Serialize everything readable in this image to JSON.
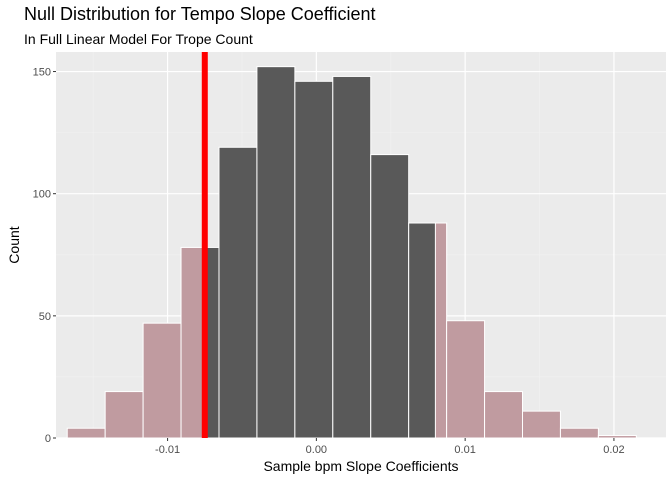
{
  "chart_data": {
    "type": "bar",
    "title": "Null Distribution for Tempo Slope Coefficient",
    "subtitle": "In Full Linear Model For Trope Count",
    "xlabel": "Sample bpm Slope Coefficients",
    "ylabel": "Count",
    "xlim": [
      -0.0175,
      0.0235
    ],
    "ylim": [
      0,
      158
    ],
    "x_ticks": [
      {
        "value": -0.01,
        "label": "-0.01"
      },
      {
        "value": 0.0,
        "label": "0.00"
      },
      {
        "value": 0.01,
        "label": "0.01"
      },
      {
        "value": 0.02,
        "label": "0.02"
      }
    ],
    "y_ticks": [
      {
        "value": 0,
        "label": "0"
      },
      {
        "value": 50,
        "label": "50"
      },
      {
        "value": 100,
        "label": "100"
      },
      {
        "value": 150,
        "label": "150"
      }
    ],
    "bin_width": 0.00255,
    "bins": [
      {
        "center": -0.01547,
        "count": 4,
        "shaded": true
      },
      {
        "center": -0.01292,
        "count": 19,
        "shaded": true
      },
      {
        "center": -0.01037,
        "count": 47,
        "shaded": true
      },
      {
        "center": -0.00782,
        "count": 78,
        "shaded": true,
        "split_at": -0.0075
      },
      {
        "center": -0.00527,
        "count": 119,
        "shaded": false
      },
      {
        "center": -0.00272,
        "count": 152,
        "shaded": false
      },
      {
        "center": -0.00017,
        "count": 146,
        "shaded": false
      },
      {
        "center": 0.00238,
        "count": 148,
        "shaded": false
      },
      {
        "center": 0.00493,
        "count": 116,
        "shaded": false
      },
      {
        "center": 0.00748,
        "count": 88,
        "shaded": true,
        "split_at": 0.008
      },
      {
        "center": 0.01003,
        "count": 48,
        "shaded": true
      },
      {
        "center": 0.01258,
        "count": 19,
        "shaded": true
      },
      {
        "center": 0.01513,
        "count": 11,
        "shaded": true
      },
      {
        "center": 0.01768,
        "count": 4,
        "shaded": true
      },
      {
        "center": 0.02023,
        "count": 1,
        "shaded": true
      }
    ],
    "observed_stat": -0.0075,
    "shade_region": {
      "low": -0.0075,
      "high": 0.008
    },
    "grid": true,
    "colors": {
      "panel_background": "#ebebeb",
      "grid_major": "#ffffff",
      "grid_minor": "#f2f2f2",
      "bar_fill": "#595959",
      "bar_outline": "#ffffff",
      "shaded_fill": "#c09ba0",
      "observed_line": "#ff0000"
    }
  }
}
